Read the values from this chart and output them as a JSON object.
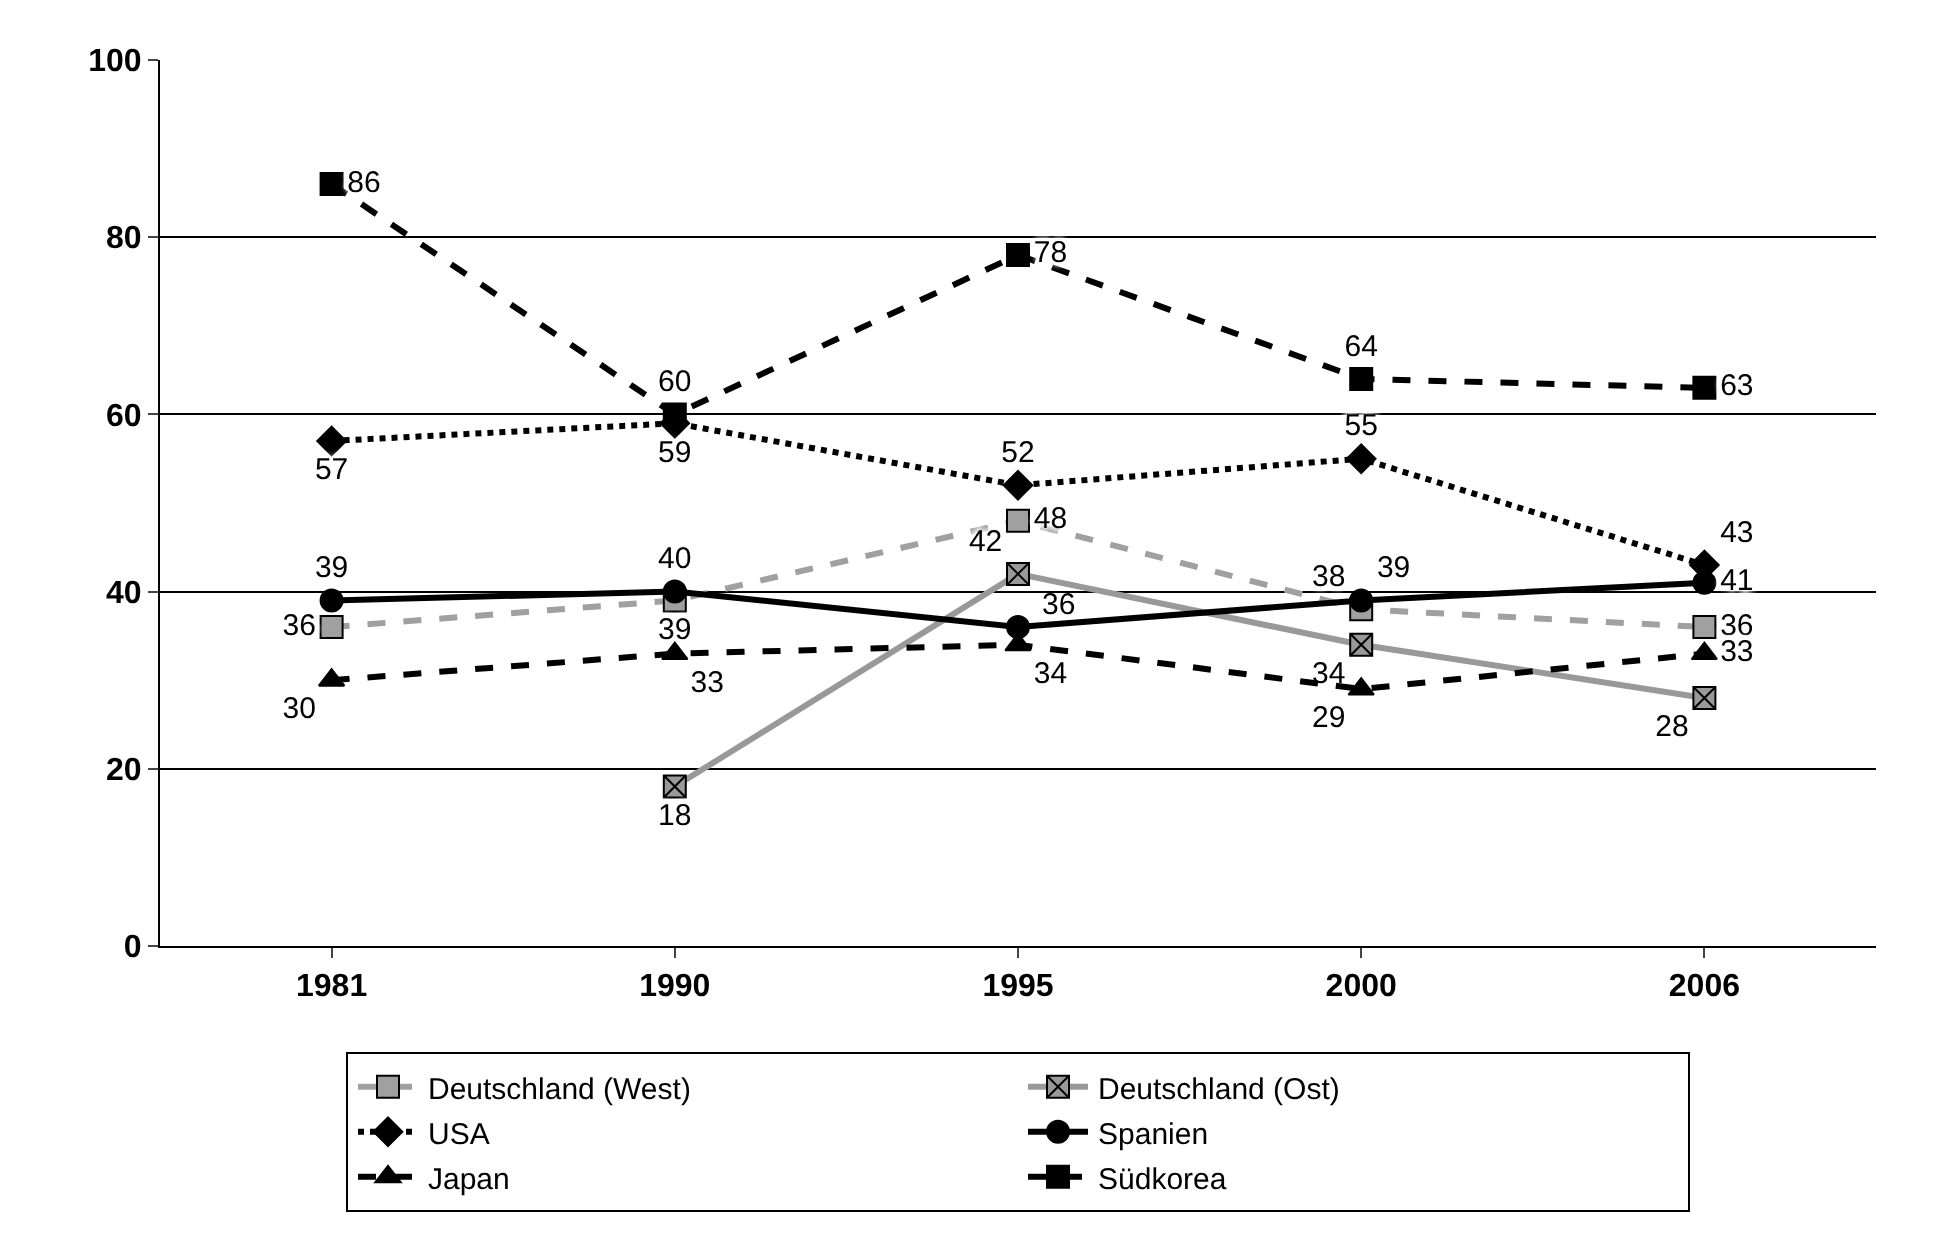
{
  "chart_data": {
    "type": "line",
    "categories": [
      "1981",
      "1990",
      "1995",
      "2000",
      "2006"
    ],
    "series": [
      {
        "name": "Deutschland (West)",
        "color": "#a0a0a0",
        "marker": "square",
        "line_style": "dashed",
        "values": [
          36,
          39,
          48,
          38,
          36
        ]
      },
      {
        "name": "Deutschland (Ost)",
        "color": "#999999",
        "marker": "cross",
        "line_style": "solid",
        "values": [
          null,
          18,
          42,
          34,
          28
        ]
      },
      {
        "name": "USA",
        "color": "#000000",
        "marker": "diamond",
        "line_style": "dotted",
        "values": [
          57,
          59,
          52,
          55,
          43
        ]
      },
      {
        "name": "Spanien",
        "color": "#000000",
        "marker": "circle",
        "line_style": "solid",
        "values": [
          39,
          40,
          36,
          39,
          41
        ]
      },
      {
        "name": "Japan",
        "color": "#000000",
        "marker": "triangle",
        "line_style": "dashed",
        "values": [
          30,
          33,
          34,
          29,
          33
        ]
      },
      {
        "name": "Südkorea",
        "color": "#000000",
        "marker": "square",
        "line_style": "dashed",
        "values": [
          86,
          60,
          78,
          64,
          63
        ]
      }
    ],
    "ylim": [
      0,
      100
    ],
    "yticks": [
      0,
      20,
      40,
      60,
      80,
      100
    ],
    "grid": "y",
    "legend": "bottom",
    "data_labels": true
  }
}
